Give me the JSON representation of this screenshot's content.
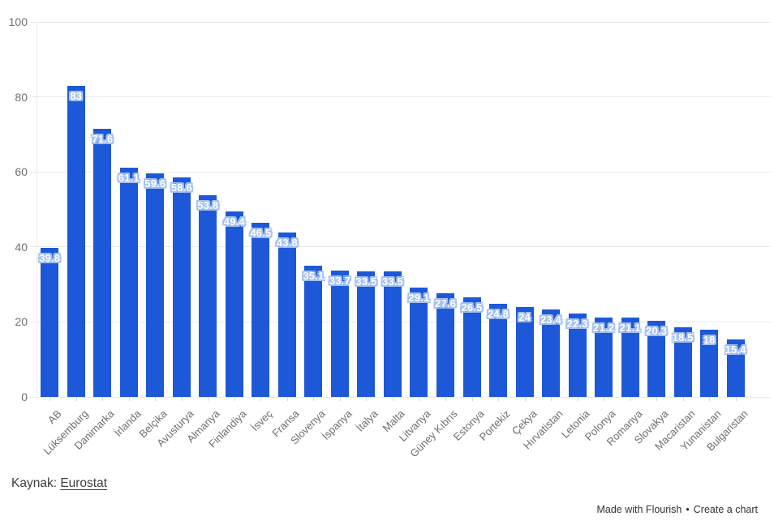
{
  "chart_data": {
    "type": "bar",
    "title": "",
    "xlabel": "",
    "ylabel": "",
    "ylim": [
      0,
      100
    ],
    "yticks": [
      0,
      20,
      40,
      60,
      80,
      100
    ],
    "grid": true,
    "legend": "none",
    "bar_color": "#1c58d8",
    "value_label_color": "#ffffff",
    "value_label_halo_color": "#a6c2f1",
    "categories": [
      "AB",
      "Lüksemburg",
      "Danimarka",
      "İrlanda",
      "Belçika",
      "Avusturya",
      "Almanya",
      "Finlandiya",
      "İsveç",
      "Fransa",
      "Slovenya",
      "İspanya",
      "İtalya",
      "Malta",
      "Litvanya",
      "Güney Kıbrıs",
      "Estonya",
      "Portekiz",
      "Çekya",
      "Hırvatistan",
      "Letonia",
      "Polonya",
      "Romanya",
      "Slovakya",
      "Macaristan",
      "Yunanistan",
      "Bulgaristan"
    ],
    "values": [
      39.8,
      83,
      71.6,
      61.1,
      59.6,
      58.6,
      53.8,
      49.4,
      46.5,
      43.8,
      35.1,
      33.7,
      33.5,
      33.5,
      29.1,
      27.6,
      26.5,
      24.8,
      24,
      23.4,
      22.3,
      21.2,
      21.1,
      20.3,
      18.5,
      18,
      15.4
    ]
  },
  "footer": {
    "source_prefix": "Kaynak: ",
    "source_link": "Eurostat"
  },
  "credit": {
    "made_with": "Made with Flourish",
    "separator": "•",
    "create": "Create a chart"
  }
}
